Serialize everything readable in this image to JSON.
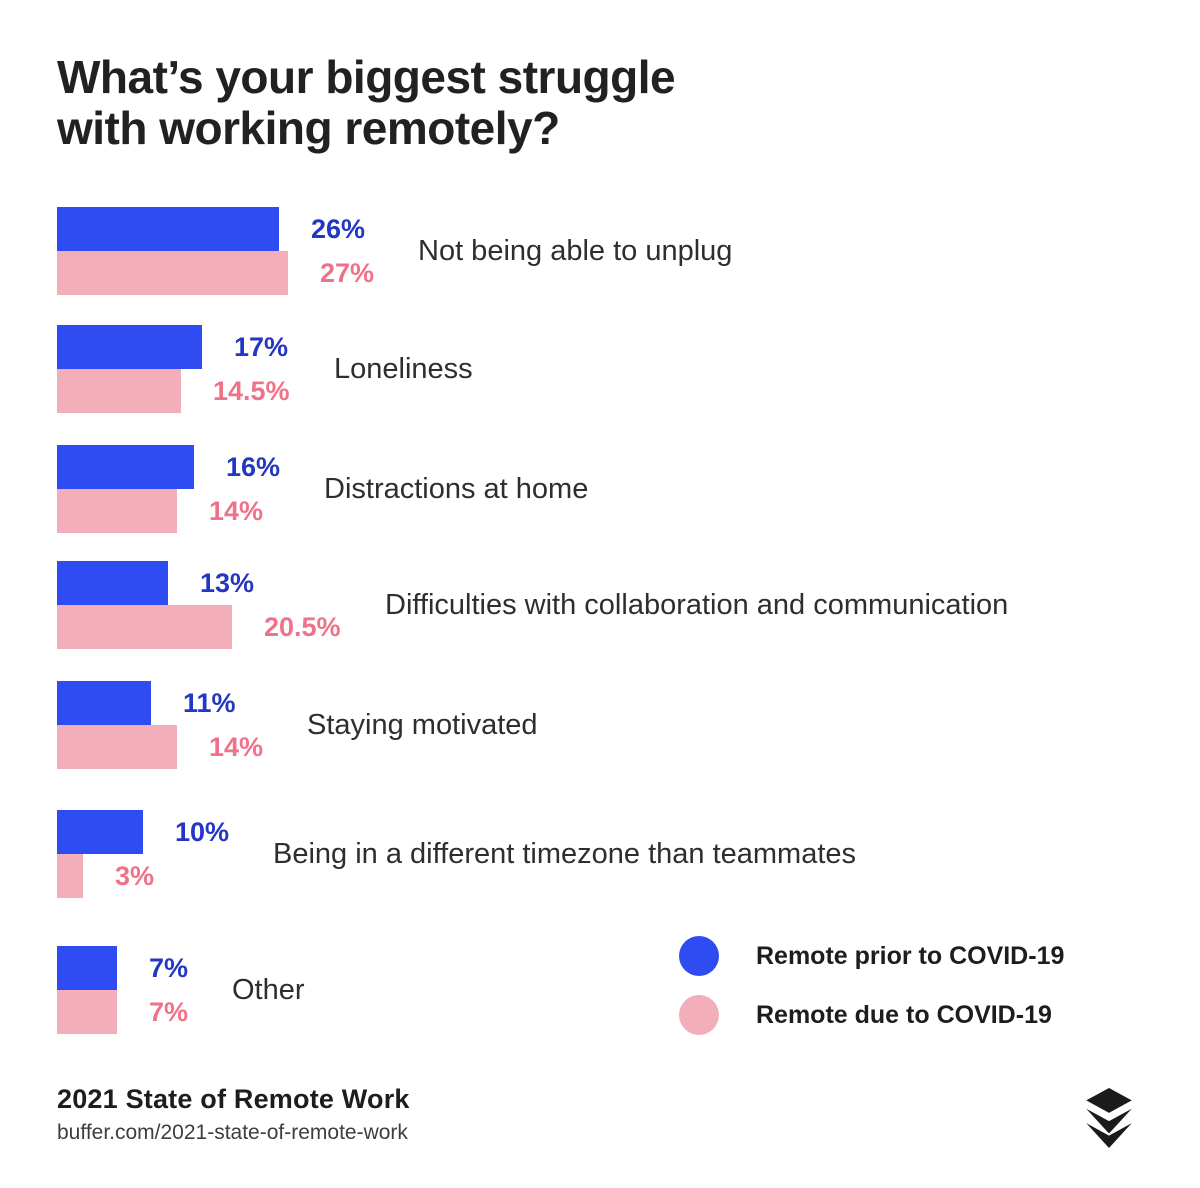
{
  "title": {
    "line1": "What’s your biggest struggle",
    "line2": "with working remotely?"
  },
  "chart_data": {
    "type": "bar",
    "orientation": "horizontal",
    "unit": "%",
    "xlim": [
      0,
      27
    ],
    "grid": false,
    "legend_position": "bottom-right",
    "categories": [
      "Not being able to unplug",
      "Loneliness",
      "Distractions at home",
      "Difficulties with collaboration and communication",
      "Staying motivated",
      "Being in a different timezone than teammates",
      "Other"
    ],
    "series": [
      {
        "name": "Remote prior to COVID-19",
        "color": "#2E4CF2",
        "label_color": "#2337C3",
        "values": [
          26,
          17,
          16,
          13,
          11,
          10,
          7
        ],
        "labels": [
          "26%",
          "17%",
          "16%",
          "13%",
          "11%",
          "10%",
          "7%"
        ]
      },
      {
        "name": "Remote due to COVID-19",
        "color": "#F2AFBA",
        "label_color": "#EF7288",
        "values": [
          27,
          14.5,
          14,
          20.5,
          14,
          3,
          7
        ],
        "labels": [
          "27%",
          "14.5%",
          "14%",
          "20.5%",
          "14%",
          "3%",
          "7%"
        ]
      }
    ]
  },
  "legend": {
    "items": [
      {
        "label": "Remote prior to COVID-19",
        "color": "#2E4CF2"
      },
      {
        "label": "Remote due to COVID-19",
        "color": "#F2AFBA"
      }
    ]
  },
  "footer": {
    "title": "2021 State of Remote Work",
    "url": "buffer.com/2021-state-of-remote-work"
  },
  "icons": {
    "logo": "buffer-logo"
  },
  "colors": {
    "background": "#FFFFFF",
    "title": "#212121",
    "category": "#2E2E2E",
    "legend_text": "#1D1D1D",
    "footer_title": "#1D1D1D",
    "footer_url": "#3E3E3E",
    "logo": "#1B1B1B"
  }
}
